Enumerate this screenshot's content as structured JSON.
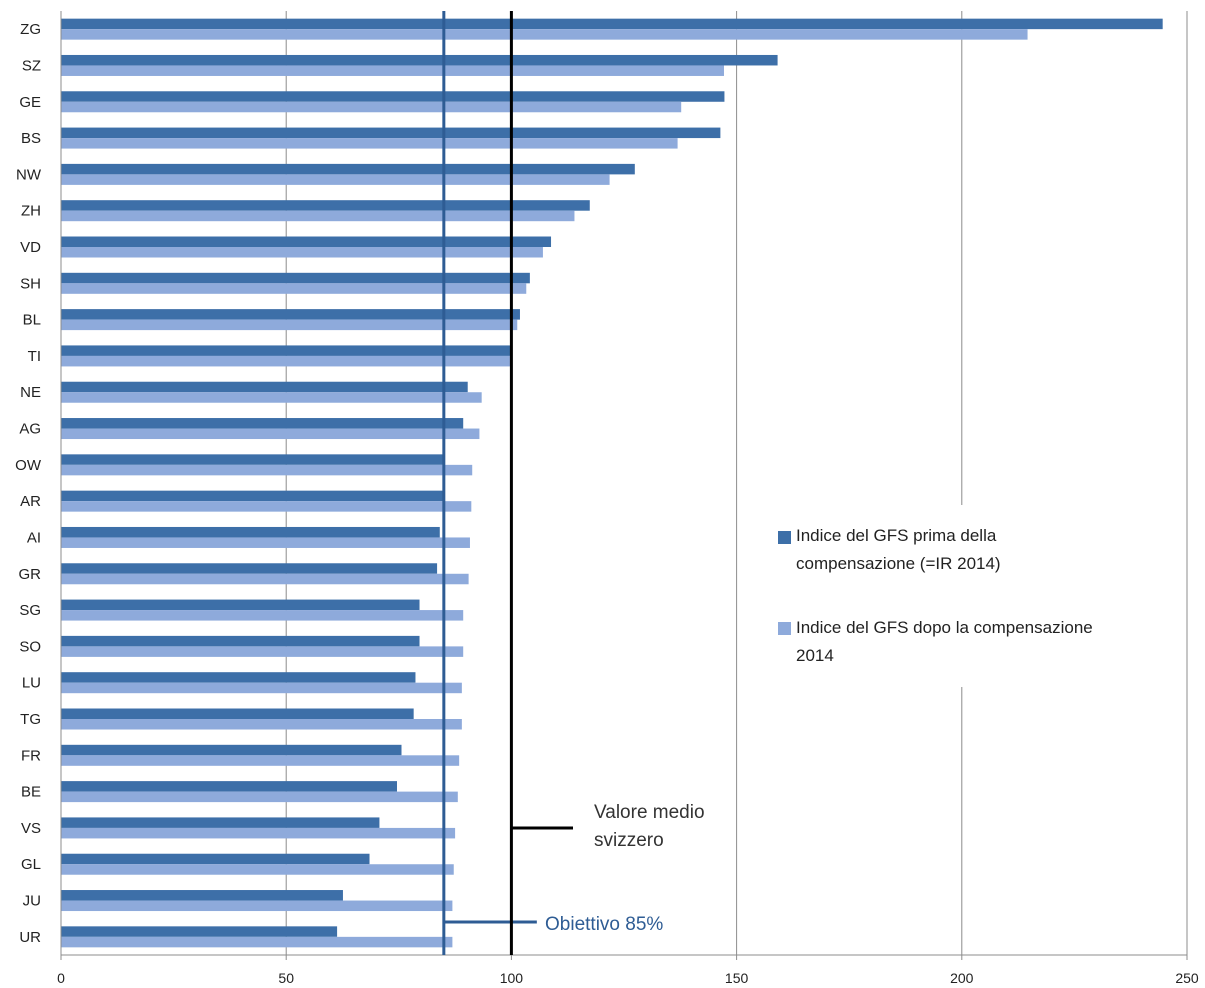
{
  "chart_data": {
    "type": "bar",
    "orientation": "horizontal",
    "categories": [
      "ZG",
      "SZ",
      "GE",
      "BS",
      "NW",
      "ZH",
      "VD",
      "SH",
      "BL",
      "TI",
      "NE",
      "AG",
      "OW",
      "AR",
      "AI",
      "GR",
      "SG",
      "SO",
      "LU",
      "TG",
      "FR",
      "BE",
      "VS",
      "GL",
      "JU",
      "UR"
    ],
    "series": [
      {
        "name": "Indice del GFS prima della compensazione  (=IR 2014)",
        "name_lines": [
          "Indice del GFS prima della",
          "compensazione  (=IR 2014)"
        ],
        "color": "#3d6fa8",
        "values": [
          244.6,
          159.1,
          147.3,
          146.4,
          127.4,
          117.4,
          108.8,
          104.1,
          101.9,
          100.2,
          90.3,
          89.3,
          85.0,
          85.2,
          84.1,
          83.5,
          79.6,
          79.6,
          78.7,
          78.3,
          75.6,
          74.6,
          70.7,
          68.5,
          62.6,
          61.3
        ]
      },
      {
        "name": "Indice del GFS dopo la compensazione 2014",
        "name_lines": [
          "Indice del GFS dopo la compensazione",
          "2014"
        ],
        "color": "#8eaadb",
        "values": [
          214.6,
          147.2,
          137.7,
          136.9,
          121.8,
          114.0,
          107.0,
          103.3,
          101.3,
          100.0,
          93.4,
          92.9,
          91.3,
          91.1,
          90.8,
          90.5,
          89.3,
          89.3,
          89.0,
          89.0,
          88.4,
          88.1,
          87.5,
          87.2,
          86.9,
          86.9
        ]
      }
    ],
    "xlim": [
      0,
      250
    ],
    "x_ticks": [
      0,
      50,
      100,
      150,
      200,
      250
    ],
    "grid": "vertical",
    "legend_position": "right-middle",
    "reference_lines": [
      {
        "value": 85,
        "label": "Obiettivo 85%",
        "color": "#2e5c94"
      },
      {
        "value": 100,
        "label_lines": [
          "Valore medio",
          "svizzero"
        ],
        "color": "#000000"
      }
    ]
  }
}
